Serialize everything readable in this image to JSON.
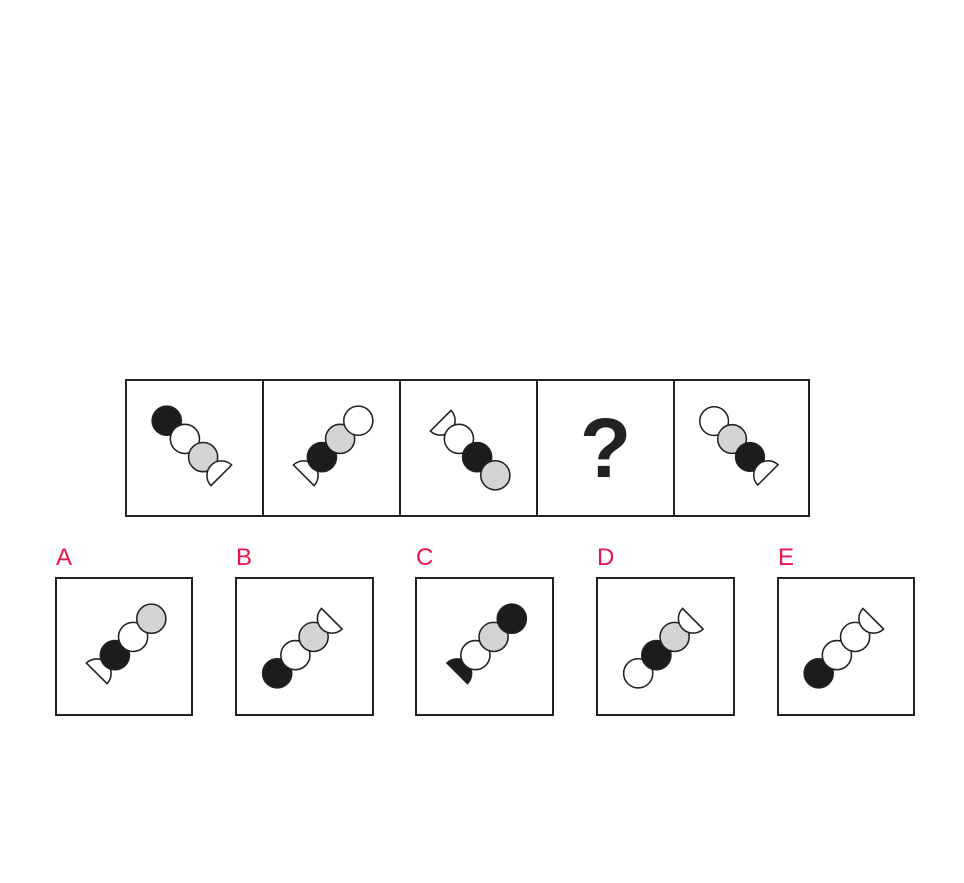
{
  "colors": {
    "black": "#1c1c1c",
    "gray": "#d4d4d4",
    "white": "#ffffff",
    "stroke": "#222222",
    "label": "#e6154c"
  },
  "sequence": [
    {
      "shapes": [
        "black",
        "white",
        "gray",
        "half"
      ]
    },
    {
      "shapes": [
        "half",
        "black",
        "gray",
        "white"
      ]
    },
    {
      "shapes": [
        "half",
        "white",
        "black",
        "gray"
      ]
    },
    {
      "question": "?"
    },
    {
      "shapes": [
        "white",
        "gray",
        "black",
        "half"
      ]
    }
  ],
  "options": [
    {
      "label": "A",
      "shapes": [
        "half",
        "black",
        "white",
        "gray"
      ]
    },
    {
      "label": "B",
      "shapes": [
        "black",
        "white",
        "gray",
        "half"
      ]
    },
    {
      "label": "C",
      "shapes": [
        "blackhalf",
        "white",
        "gray",
        "black"
      ]
    },
    {
      "label": "D",
      "shapes": [
        "white",
        "black",
        "gray",
        "half"
      ]
    },
    {
      "label": "E",
      "shapes": [
        "black",
        "white",
        "white",
        "half"
      ]
    }
  ]
}
